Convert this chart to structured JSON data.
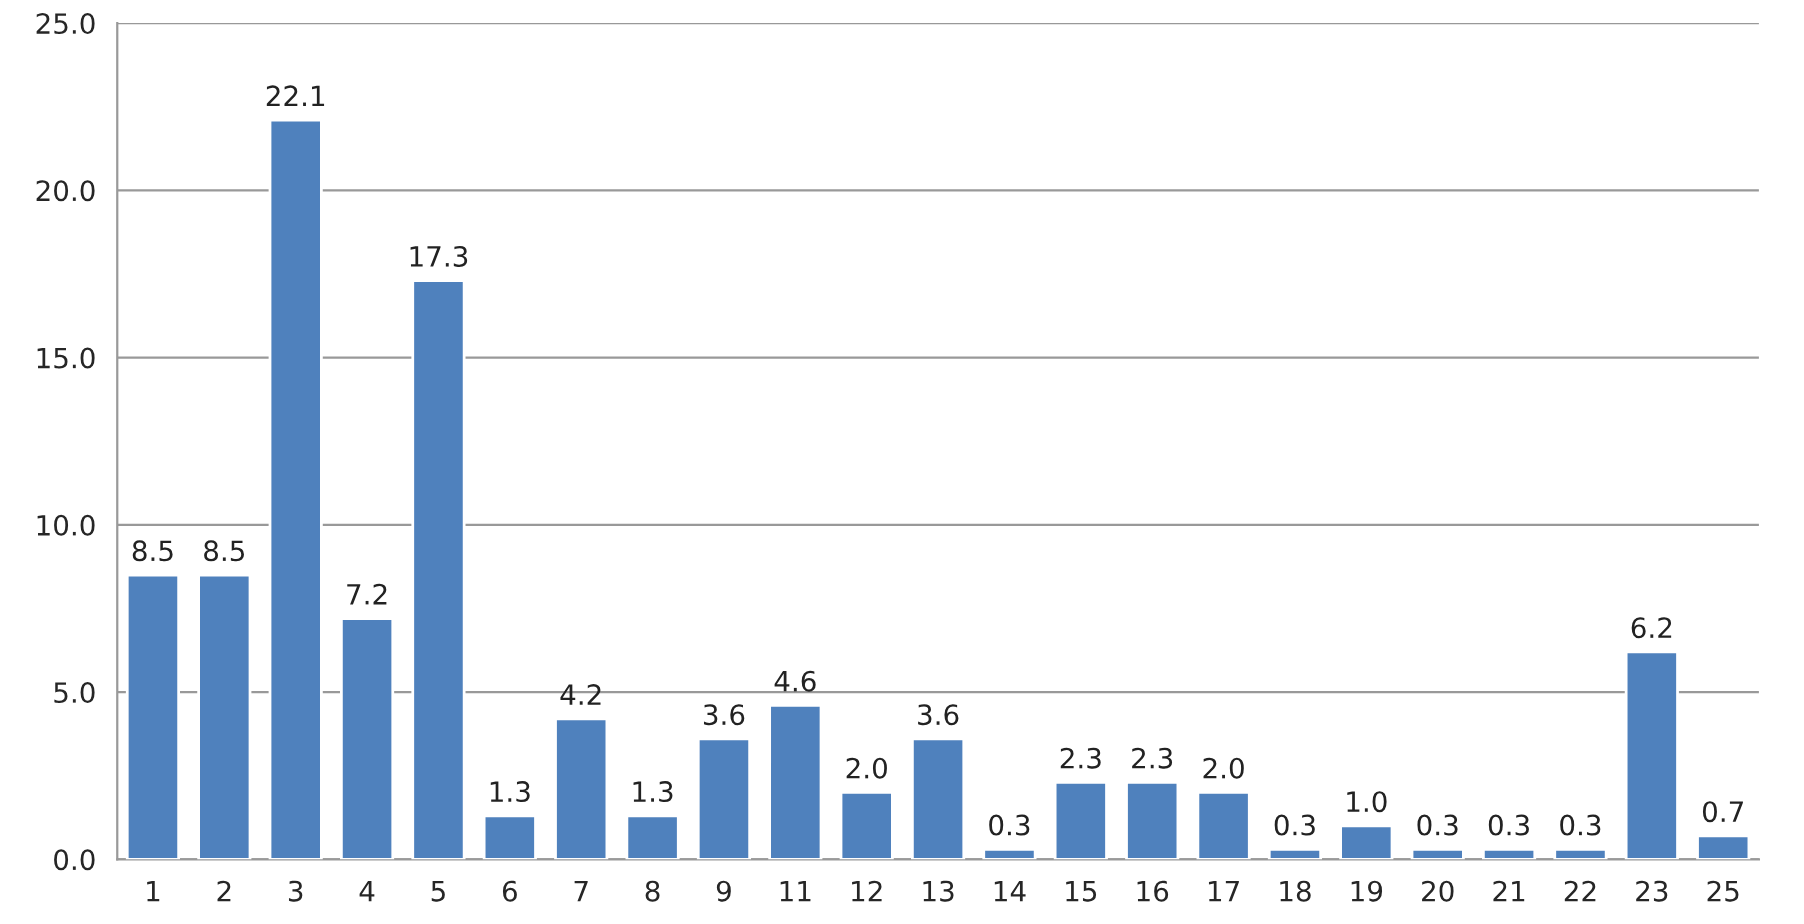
{
  "chart_data": {
    "type": "bar",
    "categories": [
      "1",
      "2",
      "3",
      "4",
      "5",
      "6",
      "7",
      "8",
      "9",
      "11",
      "12",
      "13",
      "14",
      "15",
      "16",
      "17",
      "18",
      "19",
      "20",
      "21",
      "22",
      "23",
      "25"
    ],
    "values": [
      8.5,
      8.5,
      22.1,
      7.2,
      17.3,
      1.3,
      4.2,
      1.3,
      3.6,
      4.6,
      2.0,
      3.6,
      0.3,
      2.3,
      2.3,
      2.0,
      0.3,
      1.0,
      0.3,
      0.3,
      0.3,
      6.2,
      0.7
    ],
    "value_labels": [
      "8.5",
      "8.5",
      "22.1",
      "7.2",
      "17.3",
      "1.3",
      "4.2",
      "1.3",
      "3.6",
      "4.6",
      "2.0",
      "3.6",
      "0.3",
      "2.3",
      "2.3",
      "2.0",
      "0.3",
      "1.0",
      "0.3",
      "0.3",
      "0.3",
      "6.2",
      "0.7"
    ],
    "color": "#4f81bd",
    "ylim": [
      0,
      25
    ],
    "yticks": [
      {
        "value": 0,
        "label": "0.0"
      },
      {
        "value": 5,
        "label": "5.0"
      },
      {
        "value": 10,
        "label": "10.0"
      },
      {
        "value": 15,
        "label": "15.0"
      },
      {
        "value": 20,
        "label": "20.0"
      },
      {
        "value": 25,
        "label": "25.0"
      }
    ],
    "grid": "y"
  }
}
